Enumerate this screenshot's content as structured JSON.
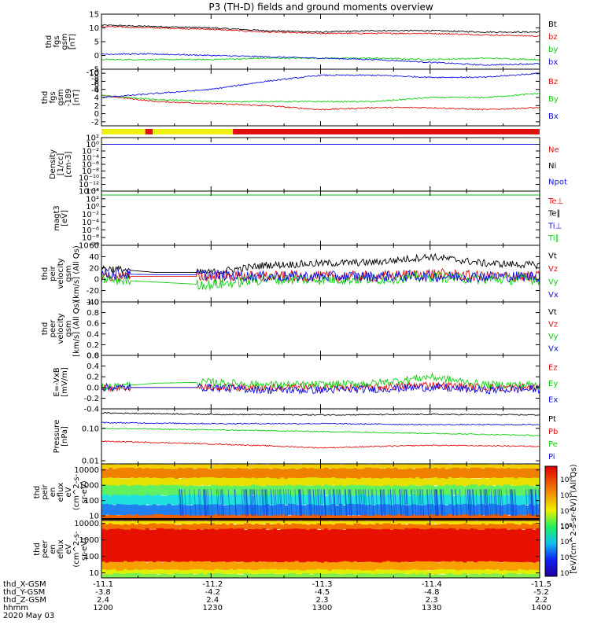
{
  "title": "P3 (TH-D) fields and ground moments overview",
  "colors": {
    "black": "#000000",
    "red": "#e01010",
    "green": "#10d010",
    "blue": "#1010e0",
    "yellow": "#f0f010"
  },
  "chart_data": [
    {
      "type": "line",
      "ylabel": [
        "thd",
        "fgs",
        "gsm",
        "[nT]"
      ],
      "ylim": [
        -5,
        15
      ],
      "yticks": [
        "-5",
        "0",
        "5",
        "10",
        "15"
      ],
      "series": [
        {
          "name": "Bt",
          "color": "#000000",
          "x": [
            1200,
            1215,
            1230,
            1245,
            1300,
            1315,
            1330,
            1345,
            1400
          ],
          "y": [
            11,
            10.5,
            10,
            9,
            8.5,
            9,
            9,
            8.5,
            8.5
          ]
        },
        {
          "name": "bz",
          "color": "#e01010",
          "x": [
            1200,
            1215,
            1230,
            1245,
            1300,
            1315,
            1330,
            1345,
            1400
          ],
          "y": [
            10.5,
            10,
            9.5,
            8.5,
            8,
            8,
            8,
            7.5,
            7
          ]
        },
        {
          "name": "by",
          "color": "#10d010",
          "x": [
            1200,
            1215,
            1230,
            1245,
            1300,
            1315,
            1330,
            1345,
            1400
          ],
          "y": [
            -1.5,
            -1.5,
            -1.5,
            -1,
            -1,
            -1,
            -1.5,
            -1,
            -1.5
          ]
        },
        {
          "name": "bx",
          "color": "#1010e0",
          "x": [
            1200,
            1215,
            1230,
            1245,
            1300,
            1315,
            1330,
            1345,
            1400
          ],
          "y": [
            0.5,
            0.5,
            0,
            -0.5,
            -1,
            -1.5,
            -2.5,
            -3.5,
            -3
          ]
        }
      ]
    },
    {
      "type": "line",
      "ylabel": [
        "thd",
        "fgs",
        "gsm",
        "-189",
        "[nT]"
      ],
      "ylim": [
        -3,
        11
      ],
      "yticks": [
        "-2",
        "0",
        "2",
        "4",
        "6",
        "8",
        "10"
      ],
      "reversed_labels": [
        "-10",
        "-8",
        "-6",
        "-4"
      ],
      "series": [
        {
          "name": "Bz",
          "color": "#e01010",
          "x": [
            1200,
            1215,
            1230,
            1245,
            1300,
            1315,
            1330,
            1345,
            1400
          ],
          "y": [
            4.5,
            3,
            2.5,
            2,
            1,
            1.5,
            1.5,
            1,
            1.5
          ]
        },
        {
          "name": "By",
          "color": "#10d010",
          "x": [
            1200,
            1215,
            1230,
            1245,
            1300,
            1315,
            1330,
            1345,
            1400
          ],
          "y": [
            4.5,
            3.5,
            3,
            3,
            3,
            3,
            4,
            4,
            5
          ]
        },
        {
          "name": "Bx",
          "color": "#1010e0",
          "x": [
            1200,
            1215,
            1230,
            1245,
            1300,
            1315,
            1330,
            1345,
            1400
          ],
          "y": [
            4,
            5,
            6,
            8,
            9.5,
            9.5,
            9,
            9,
            10
          ]
        }
      ]
    },
    {
      "type": "line",
      "ylabel": [
        "Density",
        "[1/cc]",
        "[cm-3]"
      ],
      "log": true,
      "ylim_exp": [
        -14,
        2
      ],
      "yticks": [
        "10²",
        "10⁰",
        "10⁻²",
        "10⁻⁴",
        "10⁻⁶",
        "10⁻⁸",
        "10⁻¹⁰",
        "10⁻¹²",
        "10⁻¹⁴"
      ],
      "series": [
        {
          "name": "Ne",
          "color": "#e01010",
          "x": [
            1200,
            1400
          ],
          "y": [
            1,
            1
          ]
        },
        {
          "name": "Ni",
          "color": "#000000",
          "x": [
            1200,
            1400
          ],
          "y": [
            1,
            1
          ]
        },
        {
          "name": "Npot",
          "color": "#1010e0",
          "x": [
            1200,
            1400
          ],
          "y": [
            1,
            1
          ]
        }
      ]
    },
    {
      "type": "line",
      "ylabel": [
        "magt3",
        "[eV]"
      ],
      "log": true,
      "ylim_exp": [
        -10,
        4
      ],
      "yticks": [
        "10⁴",
        "10²",
        "10⁰",
        "10⁻²",
        "10⁻⁴",
        "10⁻⁶",
        "10⁻⁸",
        "10⁻¹⁰"
      ],
      "series": [
        {
          "name": "Te⊥",
          "color": "#e01010",
          "x": [
            1200,
            1400
          ],
          "y": [
            1000,
            1000
          ]
        },
        {
          "name": "Te∥",
          "color": "#000000",
          "x": [
            1200,
            1400
          ],
          "y": [
            1000,
            1000
          ]
        },
        {
          "name": "Ti⊥",
          "color": "#1010e0",
          "x": [
            1200,
            1400
          ],
          "y": [
            1000,
            1000
          ]
        },
        {
          "name": "Ti∥",
          "color": "#10d010",
          "x": [
            1200,
            1400
          ],
          "y": [
            1000,
            1000
          ]
        }
      ]
    },
    {
      "type": "line",
      "ylabel": [
        "thd",
        "peir",
        "velocity",
        "gsm",
        "[km/s] (All Qs)"
      ],
      "ylim": [
        -40,
        60
      ],
      "yticks": [
        "-40",
        "-20",
        "0",
        "20",
        "40",
        "60"
      ],
      "series": [
        {
          "name": "Vt",
          "color": "#000000",
          "x": [
            1200,
            1215,
            1230,
            1245,
            1300,
            1315,
            1330,
            1345,
            1400
          ],
          "y": [
            20,
            12,
            12,
            25,
            28,
            30,
            40,
            28,
            25
          ]
        },
        {
          "name": "Vz",
          "color": "#e01010",
          "x": [
            1200,
            1215,
            1230,
            1245,
            1300,
            1315,
            1330,
            1345,
            1400
          ],
          "y": [
            5,
            5,
            5,
            5,
            5,
            5,
            10,
            5,
            5
          ]
        },
        {
          "name": "Vy",
          "color": "#10d010",
          "x": [
            1200,
            1215,
            1230,
            1245,
            1300,
            1315,
            1330,
            1345,
            1400
          ],
          "y": [
            0,
            -5,
            -10,
            0,
            0,
            0,
            5,
            0,
            0
          ]
        },
        {
          "name": "Vx",
          "color": "#1010e0",
          "x": [
            1200,
            1215,
            1230,
            1245,
            1300,
            1315,
            1330,
            1345,
            1400
          ],
          "y": [
            10,
            8,
            8,
            5,
            5,
            5,
            5,
            5,
            5
          ]
        }
      ]
    },
    {
      "type": "line",
      "ylabel": [
        "thd",
        "peer",
        "velocity",
        "gsm",
        "[km/s] (All Qs)"
      ],
      "ylim": [
        0,
        1
      ],
      "yticks": [
        "0.0",
        "0.2",
        "0.4",
        "0.6",
        "0.8",
        "1.0"
      ],
      "series": [
        {
          "name": "Vt",
          "color": "#000000",
          "x": [],
          "y": []
        },
        {
          "name": "Vz",
          "color": "#e01010",
          "x": [],
          "y": []
        },
        {
          "name": "Vy",
          "color": "#10d010",
          "x": [],
          "y": []
        },
        {
          "name": "Vx",
          "color": "#1010e0",
          "x": [],
          "y": []
        }
      ]
    },
    {
      "type": "line",
      "ylabel": [
        "E=-VxB",
        "[mV/m]"
      ],
      "ylim": [
        -0.4,
        0.6
      ],
      "yticks": [
        "-0.4",
        "-0.2",
        "0.0",
        "0.2",
        "0.4",
        "0.6"
      ],
      "series": [
        {
          "name": "Ez",
          "color": "#e01010",
          "x": [
            1200,
            1215,
            1230,
            1245,
            1300,
            1315,
            1330,
            1345,
            1400
          ],
          "y": [
            0,
            0,
            0,
            0,
            0,
            0,
            0.05,
            0,
            0
          ]
        },
        {
          "name": "Ey",
          "color": "#10d010",
          "x": [
            1200,
            1215,
            1230,
            1245,
            1300,
            1315,
            1330,
            1345,
            1400
          ],
          "y": [
            0,
            0.08,
            0.1,
            0.05,
            0.05,
            0.08,
            0.2,
            0.05,
            0.05
          ]
        },
        {
          "name": "Ex",
          "color": "#1010e0",
          "x": [
            1200,
            1215,
            1230,
            1245,
            1300,
            1315,
            1330,
            1345,
            1400
          ],
          "y": [
            0,
            0,
            0,
            -0.05,
            -0.05,
            -0.03,
            0,
            -0.05,
            -0.03
          ]
        }
      ]
    },
    {
      "type": "line",
      "ylabel": [
        "Pressure",
        "[nPa]"
      ],
      "log": true,
      "ylim": [
        0.008,
        0.4
      ],
      "yticks": [
        "0.10",
        "0.01"
      ],
      "series": [
        {
          "name": "Pt",
          "color": "#000000",
          "x": [
            1200,
            1230,
            1300,
            1330,
            1400
          ],
          "y": [
            0.3,
            0.27,
            0.26,
            0.27,
            0.26
          ]
        },
        {
          "name": "Pb",
          "color": "#e01010",
          "x": [
            1200,
            1230,
            1300,
            1330,
            1400
          ],
          "y": [
            0.04,
            0.033,
            0.025,
            0.03,
            0.028
          ]
        },
        {
          "name": "Pe",
          "color": "#10d010",
          "x": [
            1200,
            1230,
            1300,
            1330,
            1400
          ],
          "y": [
            0.1,
            0.09,
            0.08,
            0.07,
            0.06
          ]
        },
        {
          "name": "Pi",
          "color": "#1010e0",
          "x": [
            1200,
            1230,
            1300,
            1330,
            1400
          ],
          "y": [
            0.15,
            0.14,
            0.14,
            0.13,
            0.13
          ]
        }
      ]
    },
    {
      "type": "heatmap",
      "ylabel": [
        "thd",
        "peir",
        "en",
        "eflux",
        "eV",
        "(cm^2-s-",
        "sr-eV)"
      ],
      "ylim": [
        5,
        25000
      ],
      "yticks": [
        "10000",
        "1000",
        "100",
        "10"
      ],
      "colorbar_ticks": [
        "10⁸",
        "10⁶",
        "10⁴",
        "10²"
      ]
    },
    {
      "type": "heatmap",
      "ylabel": [
        "thd",
        "peer",
        "en",
        "eflux",
        "eV",
        "(cm^2-s-",
        "sr-eV)"
      ],
      "ylim": [
        5,
        15000
      ],
      "yticks": [
        "10000",
        "1000",
        "100",
        "10"
      ],
      "colorbar_ticks": [
        "10⁸",
        "10⁶",
        "10⁴",
        "10²"
      ]
    }
  ],
  "colorbar_label": "[eV/(cm^2-s-sr-eV)] (All Qs)",
  "ephemeris": {
    "labels": [
      "thd_X-GSM",
      "thd_Y-GSM",
      "thd_Z-GSM",
      "hhmm",
      "2020 May 03"
    ],
    "columns": [
      {
        "x": -11.1,
        "y": -3.8,
        "z": 2.4,
        "hhmm": "1200"
      },
      {
        "x": -11.2,
        "y": -4.2,
        "z": 2.4,
        "hhmm": "1230"
      },
      {
        "x": -11.3,
        "y": -4.5,
        "z": 2.3,
        "hhmm": "1300"
      },
      {
        "x": -11.4,
        "y": -4.8,
        "z": 2.3,
        "hhmm": "1330"
      },
      {
        "x": -11.5,
        "y": -5.2,
        "z": 2.2,
        "hhmm": "1400"
      }
    ]
  }
}
